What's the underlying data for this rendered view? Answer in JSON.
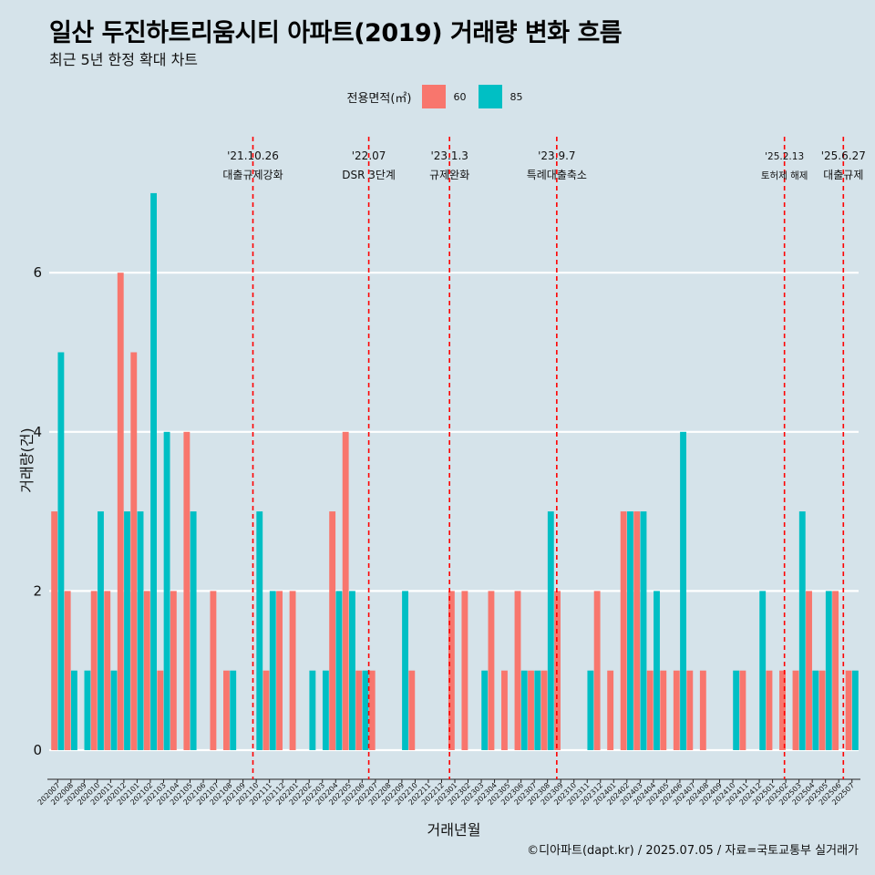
{
  "title": "일산 두진하트리움시티 아파트(2019) 거래량 변화 흐름",
  "subtitle": "최근 5년 한정 확대 차트",
  "caption": "©디아파트(dapt.kr) / 2025.07.05 / 자료=국토교통부 실거래가",
  "legend": {
    "title": "전용면적(㎡)",
    "items": [
      {
        "label": "60",
        "color": "#F8766D"
      },
      {
        "label": "85",
        "color": "#00BFC4"
      }
    ]
  },
  "chart_data": {
    "type": "bar",
    "title": "일산 두진하트리움시티 아파트(2019) 거래량 변화 흐름",
    "xlabel": "거래년월",
    "ylabel": "거래량(건)",
    "ylim": [
      0,
      7
    ],
    "yticks": [
      0,
      2,
      4,
      6
    ],
    "categories": [
      "202007",
      "202008",
      "202009",
      "202010",
      "202011",
      "202012",
      "202101",
      "202102",
      "202103",
      "202104",
      "202105",
      "202106",
      "202107",
      "202108",
      "202109",
      "202110",
      "202111",
      "202112",
      "202201",
      "202202",
      "202203",
      "202204",
      "202205",
      "202206",
      "202207",
      "202208",
      "202209",
      "202210",
      "202211",
      "202212",
      "202301",
      "202302",
      "202303",
      "202304",
      "202305",
      "202306",
      "202307",
      "202308",
      "202309",
      "202310",
      "202311",
      "202312",
      "202401",
      "202402",
      "202403",
      "202404",
      "202405",
      "202406",
      "202407",
      "202408",
      "202409",
      "202410",
      "202411",
      "202412",
      "202501",
      "202502",
      "202503",
      "202504",
      "202505",
      "202506",
      "202507"
    ],
    "series": [
      {
        "name": "60",
        "color": "#F8766D",
        "values": [
          3,
          2,
          0,
          2,
          2,
          6,
          5,
          2,
          1,
          2,
          4,
          0,
          2,
          1,
          0,
          0,
          1,
          2,
          2,
          0,
          0,
          3,
          4,
          1,
          1,
          0,
          0,
          1,
          0,
          0,
          2,
          2,
          0,
          2,
          1,
          2,
          1,
          1,
          2,
          0,
          0,
          2,
          1,
          3,
          3,
          1,
          1,
          1,
          1,
          1,
          0,
          0,
          1,
          0,
          1,
          1,
          1,
          2,
          1,
          2,
          1
        ]
      },
      {
        "name": "85",
        "color": "#00BFC4",
        "values": [
          5,
          1,
          1,
          3,
          1,
          3,
          3,
          7,
          4,
          0,
          3,
          0,
          0,
          1,
          0,
          3,
          2,
          0,
          0,
          1,
          1,
          2,
          2,
          1,
          0,
          0,
          2,
          0,
          0,
          0,
          0,
          0,
          1,
          0,
          0,
          1,
          1,
          3,
          0,
          0,
          1,
          0,
          0,
          3,
          3,
          2,
          0,
          4,
          0,
          0,
          0,
          1,
          0,
          2,
          0,
          0,
          3,
          1,
          2,
          0,
          1
        ]
      }
    ],
    "events": [
      {
        "date": "'21.10.26",
        "label": "대출규제강화",
        "at": "202110",
        "offset": 0.25
      },
      {
        "date": "'22.07",
        "label": "DSR 3단계",
        "at": "202207",
        "offset": 0
      },
      {
        "date": "'23.1.3",
        "label": "규제완화",
        "at": "202301",
        "offset": 0.1
      },
      {
        "date": "'23.9.7",
        "label": "특례대출축소",
        "at": "202309",
        "offset": 0.2
      },
      {
        "date": "'25.2.13",
        "label": "토허제 해제",
        "at": "202502",
        "offset": 0.4
      },
      {
        "date": "'25.6.27",
        "label": "대출규제",
        "at": "202506",
        "offset": 0.85
      }
    ]
  }
}
